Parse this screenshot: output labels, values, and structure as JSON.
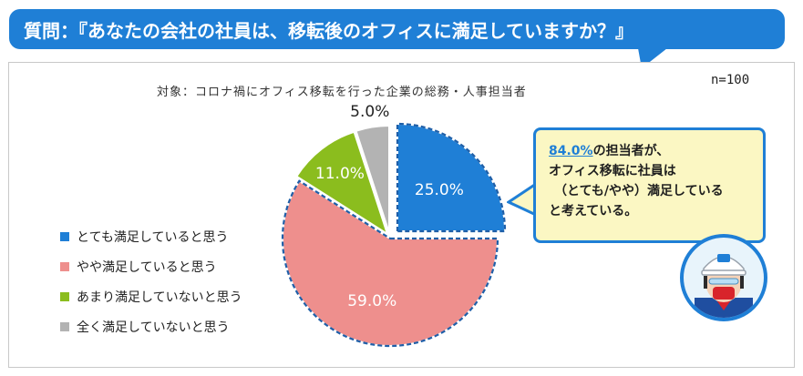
{
  "header": {
    "question": "質問：『あなたの会社の社員は、移転後のオフィスに満足していますか？』"
  },
  "subtitle": "対象：コロナ禍にオフィス移転を行った企業の総務・人事担当者",
  "sample_size": "n=100",
  "callout": {
    "highlight": "84.0%",
    "line1_rest": "の担当者が、",
    "line2": "オフィス移転に社員は",
    "line3": "（とても/やや）満足している",
    "line4": "と考えている。"
  },
  "chart_data": {
    "type": "pie",
    "start": "12 o'clock, clockwise",
    "categories": [
      "とても満足していると思う",
      "やや満足していると思う",
      "あまり満足していないと思う",
      "全く満足していないと思う"
    ],
    "values": [
      25.0,
      59.0,
      11.0,
      5.0
    ],
    "labels": [
      "25.0%",
      "59.0%",
      "11.0%",
      "5.0%"
    ],
    "colors": [
      "#1f7fd6",
      "#ee8f8d",
      "#8bbd1e",
      "#b3b3b3"
    ],
    "legend_position": "left"
  }
}
